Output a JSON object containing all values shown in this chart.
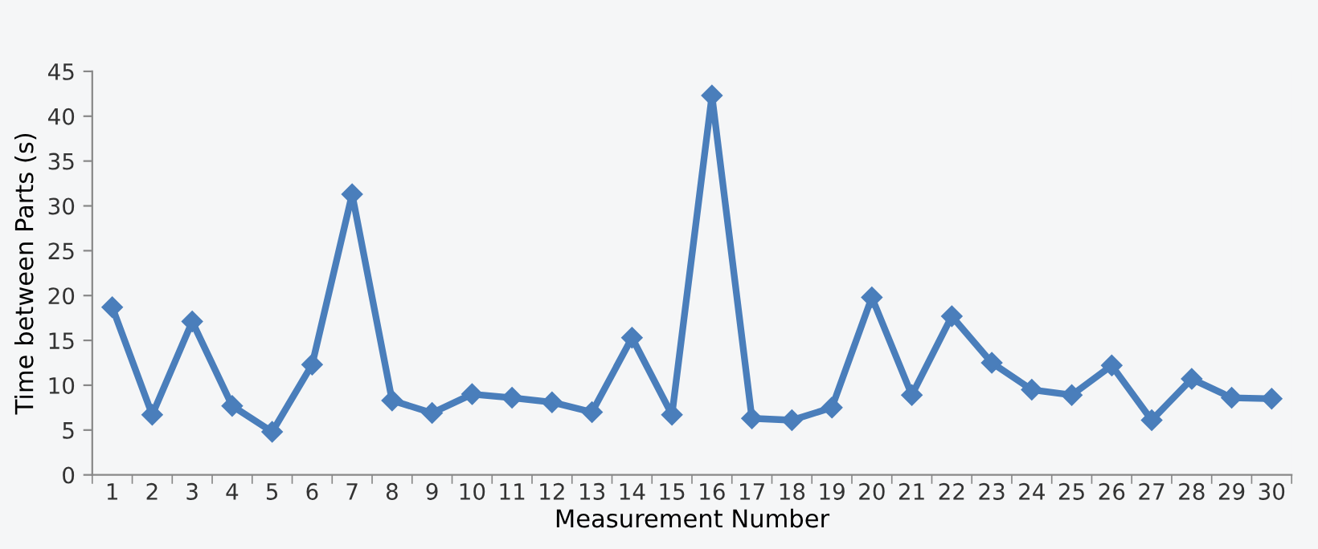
{
  "chart_data": {
    "type": "line",
    "xlabel": "Measurement Number",
    "ylabel": "Time between Parts (s)",
    "categories": [
      "1",
      "2",
      "3",
      "4",
      "5",
      "6",
      "7",
      "8",
      "9",
      "10",
      "11",
      "12",
      "13",
      "14",
      "15",
      "16",
      "17",
      "18",
      "19",
      "20",
      "21",
      "22",
      "23",
      "24",
      "25",
      "26",
      "27",
      "28",
      "29",
      "30"
    ],
    "series": [
      {
        "color": "#4a7ebb",
        "values": [
          18.7,
          6.7,
          17.1,
          7.7,
          4.8,
          12.3,
          31.3,
          8.3,
          6.9,
          9.0,
          8.6,
          8.1,
          7.0,
          15.3,
          6.7,
          42.3,
          6.3,
          6.1,
          7.5,
          19.8,
          8.9,
          17.7,
          12.5,
          9.5,
          8.9,
          12.2,
          6.1,
          10.7,
          8.6,
          8.5
        ]
      }
    ],
    "ylim": [
      0,
      45
    ],
    "yticks": [
      0,
      5,
      10,
      15,
      20,
      25,
      30,
      35,
      40,
      45
    ],
    "grid": false,
    "legend": false,
    "marker": "diamond",
    "line_style": "solid"
  }
}
